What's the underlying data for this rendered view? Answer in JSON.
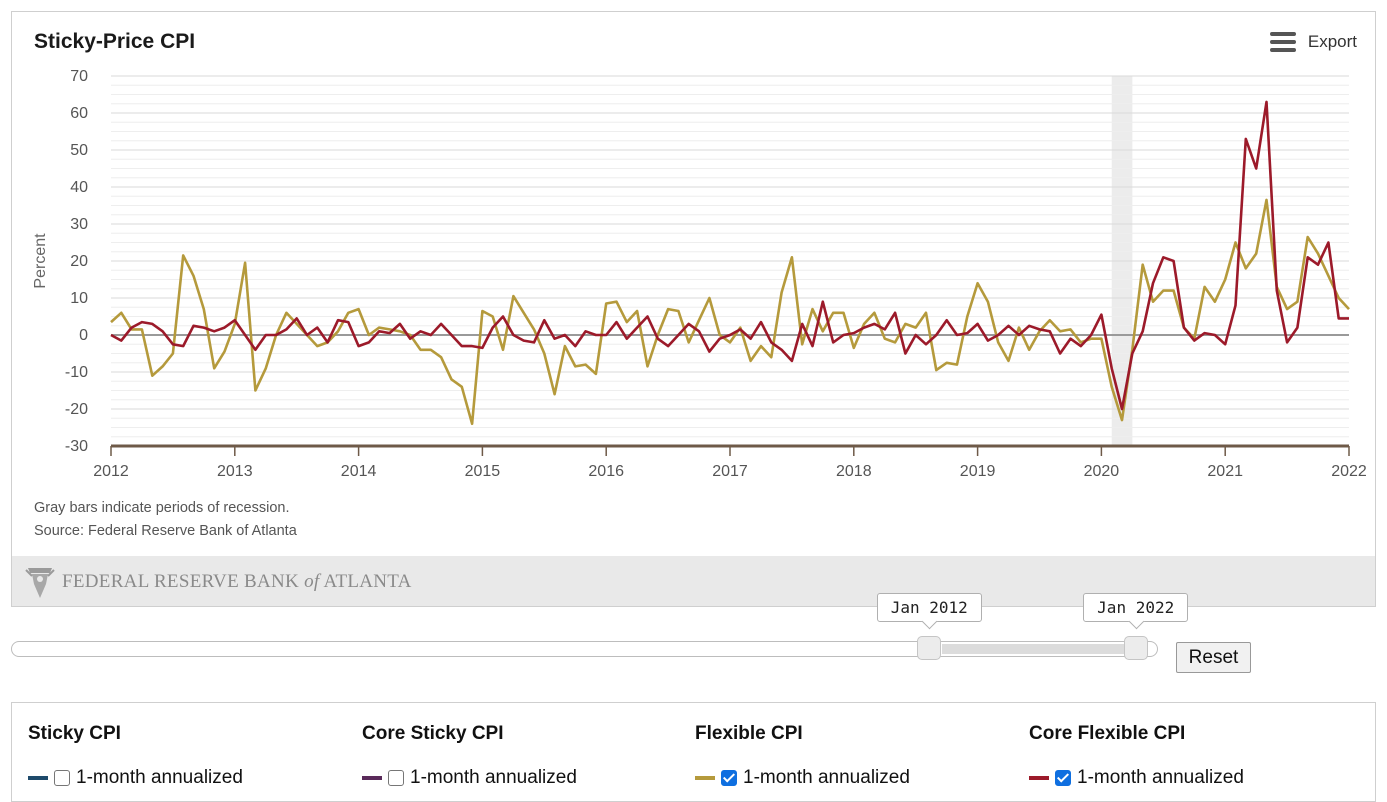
{
  "chart": {
    "title": "Sticky-Price CPI",
    "export_label": "Export",
    "note_recession": "Gray bars indicate periods of recession.",
    "note_source": "Source: Federal Reserve Bank of Atlanta",
    "logo_text_main": "FEDERAL RESERVE BANK",
    "logo_text_of": "of",
    "logo_text_end": "ATLANTA"
  },
  "chart_data": {
    "type": "line",
    "title": "Sticky-Price CPI",
    "xlabel": "",
    "ylabel": "Percent",
    "xlim": [
      "2012-01",
      "2022-01"
    ],
    "ylim": [
      -30,
      70
    ],
    "yticks": [
      -30,
      -20,
      -10,
      0,
      10,
      20,
      30,
      40,
      50,
      60,
      70
    ],
    "xticks": [
      "2012",
      "2013",
      "2014",
      "2015",
      "2016",
      "2017",
      "2018",
      "2019",
      "2020",
      "2021",
      "2022"
    ],
    "grid": true,
    "recessions": [
      [
        "2020-02",
        "2020-04"
      ]
    ],
    "series": [
      {
        "name": "Flexible CPI",
        "color": "#b59a3c",
        "x": [
          "2012-01",
          "2012-02",
          "2012-03",
          "2012-04",
          "2012-05",
          "2012-06",
          "2012-07",
          "2012-08",
          "2012-09",
          "2012-10",
          "2012-11",
          "2012-12",
          "2013-01",
          "2013-02",
          "2013-03",
          "2013-04",
          "2013-05",
          "2013-06",
          "2013-07",
          "2013-08",
          "2013-09",
          "2013-10",
          "2013-11",
          "2013-12",
          "2014-01",
          "2014-02",
          "2014-03",
          "2014-04",
          "2014-05",
          "2014-06",
          "2014-07",
          "2014-08",
          "2014-09",
          "2014-10",
          "2014-11",
          "2014-12",
          "2015-01",
          "2015-02",
          "2015-03",
          "2015-04",
          "2015-05",
          "2015-06",
          "2015-07",
          "2015-08",
          "2015-09",
          "2015-10",
          "2015-11",
          "2015-12",
          "2016-01",
          "2016-02",
          "2016-03",
          "2016-04",
          "2016-05",
          "2016-06",
          "2016-07",
          "2016-08",
          "2016-09",
          "2016-10",
          "2016-11",
          "2016-12",
          "2017-01",
          "2017-02",
          "2017-03",
          "2017-04",
          "2017-05",
          "2017-06",
          "2017-07",
          "2017-08",
          "2017-09",
          "2017-10",
          "2017-11",
          "2017-12",
          "2018-01",
          "2018-02",
          "2018-03",
          "2018-04",
          "2018-05",
          "2018-06",
          "2018-07",
          "2018-08",
          "2018-09",
          "2018-10",
          "2018-11",
          "2018-12",
          "2019-01",
          "2019-02",
          "2019-03",
          "2019-04",
          "2019-05",
          "2019-06",
          "2019-07",
          "2019-08",
          "2019-09",
          "2019-10",
          "2019-11",
          "2019-12",
          "2020-01",
          "2020-02",
          "2020-03",
          "2020-04",
          "2020-05",
          "2020-06",
          "2020-07",
          "2020-08",
          "2020-09",
          "2020-10",
          "2020-11",
          "2020-12",
          "2021-01",
          "2021-02",
          "2021-03",
          "2021-04",
          "2021-05",
          "2021-06",
          "2021-07",
          "2021-08",
          "2021-09",
          "2021-10",
          "2021-11",
          "2021-12",
          "2022-01"
        ],
        "values": [
          3.5,
          6,
          1.5,
          1.5,
          -11,
          -8.5,
          -5,
          21.5,
          16,
          7,
          -9,
          -4.5,
          3,
          19.5,
          -15,
          -9,
          0,
          6,
          3,
          0,
          -3,
          -2,
          1,
          6,
          7,
          0,
          2,
          1.5,
          1,
          0,
          -4,
          -4,
          -6,
          -12,
          -14,
          -24,
          6.5,
          5,
          -4,
          10.5,
          6,
          1.5,
          -5,
          -16,
          -3,
          -8.5,
          -8,
          -10.5,
          8.5,
          9,
          3.5,
          6.5,
          -8.5,
          0,
          7,
          6.5,
          -2,
          4,
          10,
          0,
          -2,
          2,
          -7,
          -3,
          -6,
          11.5,
          21,
          -2.5,
          7,
          1,
          6,
          6,
          -3.5,
          3,
          6,
          -1,
          -2,
          3,
          2,
          6,
          -9.5,
          -7.5,
          -8,
          5,
          14,
          9,
          -2,
          -7,
          2,
          -4,
          1,
          4,
          1,
          1.5,
          -2,
          -1,
          -1,
          -14,
          -23,
          -4,
          19,
          9,
          12,
          12,
          2,
          -1,
          13,
          9,
          15,
          25,
          18,
          22,
          36.5,
          13,
          7,
          9,
          26.5,
          22,
          16,
          10,
          7
        ]
      },
      {
        "name": "Core Flexible CPI",
        "color": "#9c1a2a",
        "x": [
          "2012-01",
          "2012-02",
          "2012-03",
          "2012-04",
          "2012-05",
          "2012-06",
          "2012-07",
          "2012-08",
          "2012-09",
          "2012-10",
          "2012-11",
          "2012-12",
          "2013-01",
          "2013-02",
          "2013-03",
          "2013-04",
          "2013-05",
          "2013-06",
          "2013-07",
          "2013-08",
          "2013-09",
          "2013-10",
          "2013-11",
          "2013-12",
          "2014-01",
          "2014-02",
          "2014-03",
          "2014-04",
          "2014-05",
          "2014-06",
          "2014-07",
          "2014-08",
          "2014-09",
          "2014-10",
          "2014-11",
          "2014-12",
          "2015-01",
          "2015-02",
          "2015-03",
          "2015-04",
          "2015-05",
          "2015-06",
          "2015-07",
          "2015-08",
          "2015-09",
          "2015-10",
          "2015-11",
          "2015-12",
          "2016-01",
          "2016-02",
          "2016-03",
          "2016-04",
          "2016-05",
          "2016-06",
          "2016-07",
          "2016-08",
          "2016-09",
          "2016-10",
          "2016-11",
          "2016-12",
          "2017-01",
          "2017-02",
          "2017-03",
          "2017-04",
          "2017-05",
          "2017-06",
          "2017-07",
          "2017-08",
          "2017-09",
          "2017-10",
          "2017-11",
          "2017-12",
          "2018-01",
          "2018-02",
          "2018-03",
          "2018-04",
          "2018-05",
          "2018-06",
          "2018-07",
          "2018-08",
          "2018-09",
          "2018-10",
          "2018-11",
          "2018-12",
          "2019-01",
          "2019-02",
          "2019-03",
          "2019-04",
          "2019-05",
          "2019-06",
          "2019-07",
          "2019-08",
          "2019-09",
          "2019-10",
          "2019-11",
          "2019-12",
          "2020-01",
          "2020-02",
          "2020-03",
          "2020-04",
          "2020-05",
          "2020-06",
          "2020-07",
          "2020-08",
          "2020-09",
          "2020-10",
          "2020-11",
          "2020-12",
          "2021-01",
          "2021-02",
          "2021-03",
          "2021-04",
          "2021-05",
          "2021-06",
          "2021-07",
          "2021-08",
          "2021-09",
          "2021-10",
          "2021-11",
          "2021-12",
          "2022-01"
        ],
        "values": [
          0,
          -1.5,
          2,
          3.5,
          3,
          1,
          -2.5,
          -3,
          2.5,
          2,
          1,
          2,
          4,
          0,
          -4,
          0,
          0,
          1.5,
          4.5,
          0,
          2,
          -2,
          4,
          3.5,
          -3,
          -2,
          1,
          0.5,
          3,
          -1,
          1,
          0,
          3,
          0,
          -3,
          -3,
          -3.5,
          2,
          5,
          0,
          -1.5,
          -2,
          4,
          -1,
          0,
          -3,
          1,
          0,
          0,
          3.5,
          -1,
          2,
          5,
          -1,
          -3,
          0,
          3,
          1,
          -4.5,
          -1,
          0,
          1.5,
          -1,
          3.5,
          -2,
          -4,
          -7,
          3,
          -3,
          9,
          -2,
          0,
          0.5,
          2,
          3,
          1.5,
          6,
          -5,
          0,
          -2.5,
          0,
          4,
          0,
          0.5,
          3,
          -1.5,
          0,
          2.5,
          0,
          2.5,
          1.5,
          1,
          -5,
          -1,
          -3,
          0,
          5.5,
          -9,
          -20,
          -5,
          1,
          14,
          21,
          20,
          2,
          -1.5,
          0.5,
          0,
          -2.5,
          8,
          53,
          45,
          63,
          12,
          -2,
          2,
          21,
          19,
          25,
          4.5,
          4.5
        ]
      }
    ]
  },
  "range_selector": {
    "from_label": "Jan 2012",
    "to_label": "Jan 2022",
    "from_fraction": 0.811,
    "to_fraction": 0.991,
    "reset_label": "Reset"
  },
  "legend": {
    "groups": [
      {
        "title": "Sticky CPI",
        "item_label": "1-month annualized",
        "color": "#1e4a6b",
        "checked": false
      },
      {
        "title": "Core Sticky CPI",
        "item_label": "1-month annualized",
        "color": "#5a2a5a",
        "checked": false
      },
      {
        "title": "Flexible CPI",
        "item_label": "1-month annualized",
        "color": "#b59a3c",
        "checked": true
      },
      {
        "title": "Core Flexible CPI",
        "item_label": "1-month annualized",
        "color": "#9c1a2a",
        "checked": true
      }
    ]
  }
}
